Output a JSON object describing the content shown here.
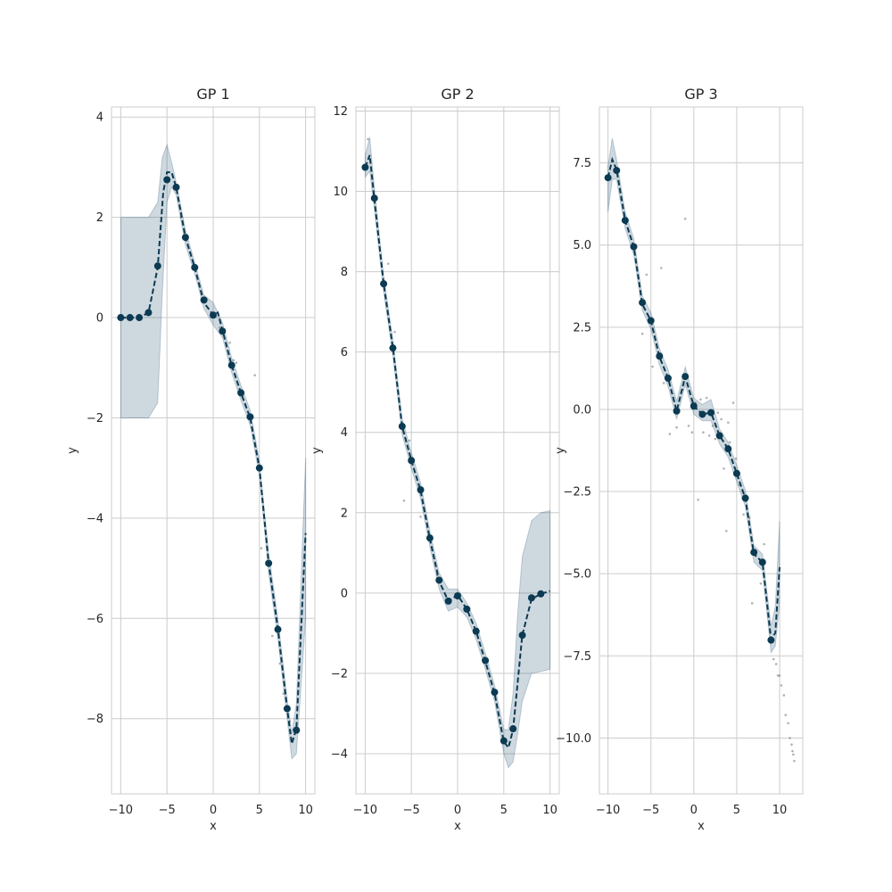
{
  "chart_data": [
    {
      "type": "line",
      "title": "GP 1",
      "xlabel": "x",
      "ylabel": "y",
      "xlim": [
        -11,
        11
      ],
      "ylim": [
        -9.5,
        4.2
      ],
      "xticks": [
        -10,
        -5,
        0,
        5,
        10
      ],
      "xticklabels": [
        "−10",
        "−5",
        "0",
        "5",
        "10"
      ],
      "yticks": [
        -8,
        -6,
        -4,
        -2,
        0,
        2,
        4
      ],
      "yticklabels": [
        "−8",
        "−6",
        "−4",
        "−2",
        "0",
        "2",
        "4"
      ],
      "grid": true,
      "mean": {
        "x": [
          -10,
          -9,
          -8,
          -7,
          -6,
          -5.4,
          -5,
          -4.5,
          -4,
          -3,
          -2,
          -1,
          0,
          0.5,
          1,
          2,
          3,
          4,
          5,
          6,
          7,
          8,
          8.5,
          9,
          10
        ],
        "y": [
          0,
          0,
          0,
          0.1,
          1.0,
          2.5,
          2.9,
          2.9,
          2.6,
          1.6,
          1.0,
          0.3,
          0.05,
          0.1,
          -0.25,
          -0.95,
          -1.5,
          -2.0,
          -3.0,
          -4.9,
          -6.2,
          -7.8,
          -8.5,
          -8.2,
          -4.3
        ]
      },
      "markers": {
        "x": [
          -10,
          -9,
          -8,
          -7,
          -6,
          -5,
          -4,
          -3,
          -2,
          -1,
          0,
          1,
          2,
          3,
          4,
          5,
          6,
          7,
          8,
          9
        ],
        "y": [
          0,
          0,
          0,
          0.1,
          1.03,
          2.75,
          2.6,
          1.6,
          1.0,
          0.35,
          0.05,
          -0.27,
          -0.95,
          -1.5,
          -1.98,
          -3.0,
          -4.9,
          -6.22,
          -7.8,
          -8.23
        ]
      },
      "band": {
        "x": [
          -10,
          -9,
          -8,
          -7,
          -6,
          -5.5,
          -5,
          -4.5,
          -4,
          -3,
          -2,
          -1,
          0,
          1,
          2,
          3,
          4,
          5,
          6,
          7,
          8,
          8.5,
          9,
          10
        ],
        "upper": [
          2.0,
          2.0,
          2.0,
          2.0,
          2.3,
          3.2,
          3.45,
          3.1,
          2.7,
          1.75,
          1.1,
          0.45,
          0.3,
          -0.1,
          -0.8,
          -1.35,
          -1.85,
          -2.85,
          -4.7,
          -6.0,
          -7.6,
          -8.3,
          -7.7,
          -2.8
        ],
        "lower": [
          -2.0,
          -2.0,
          -2.0,
          -2.0,
          -1.7,
          0.5,
          2.3,
          2.6,
          2.45,
          1.45,
          0.88,
          0.18,
          -0.15,
          -0.4,
          -1.1,
          -1.65,
          -2.15,
          -3.15,
          -5.1,
          -6.4,
          -8.0,
          -8.8,
          -8.7,
          -6.0
        ]
      },
      "scatter": {
        "x": [
          -3.5,
          -2.5,
          0.7,
          1.8,
          2.2,
          2.5,
          4.5,
          5.2,
          6.4,
          7.2,
          7.6,
          8.3
        ],
        "y": [
          2.0,
          1.3,
          -0.2,
          -0.5,
          -0.85,
          -0.9,
          -1.15,
          -4.6,
          -6.35,
          -6.9,
          -7.5,
          -8.05
        ]
      }
    },
    {
      "type": "line",
      "title": "GP 2",
      "xlabel": "x",
      "ylabel": "y",
      "xlim": [
        -11,
        11
      ],
      "ylim": [
        -5.0,
        12.1
      ],
      "xticks": [
        -10,
        -5,
        0,
        5,
        10
      ],
      "xticklabels": [
        "−10",
        "−5",
        "0",
        "5",
        "10"
      ],
      "yticks": [
        -4,
        -2,
        0,
        2,
        4,
        6,
        8,
        10,
        12
      ],
      "yticklabels": [
        "−4",
        "−2",
        "0",
        "2",
        "4",
        "6",
        "8",
        "10",
        "12"
      ],
      "grid": true,
      "mean": {
        "x": [
          -10,
          -9.5,
          -9,
          -8,
          -7,
          -6,
          -5,
          -4,
          -3,
          -2,
          -1,
          0,
          1,
          2,
          3,
          4,
          5,
          5.5,
          6,
          7,
          8,
          9,
          10
        ],
        "y": [
          10.6,
          10.9,
          9.8,
          7.7,
          6.1,
          4.15,
          3.3,
          2.55,
          1.35,
          0.3,
          -0.2,
          -0.05,
          -0.4,
          -0.95,
          -1.7,
          -2.5,
          -3.7,
          -3.85,
          -3.4,
          -1.05,
          -0.15,
          -0.02,
          0.05
        ]
      },
      "markers": {
        "x": [
          -10,
          -9,
          -8,
          -7,
          -6,
          -5,
          -4,
          -3,
          -2,
          -1,
          0,
          1,
          2,
          3,
          4,
          5,
          6,
          7,
          8,
          9
        ],
        "y": [
          10.6,
          9.83,
          7.7,
          6.1,
          4.15,
          3.3,
          2.57,
          1.37,
          0.32,
          -0.2,
          -0.07,
          -0.4,
          -0.95,
          -1.68,
          -2.47,
          -3.68,
          -3.38,
          -1.05,
          -0.12,
          -0.02
        ]
      },
      "band": {
        "x": [
          -10,
          -9.5,
          -9,
          -8,
          -7,
          -6,
          -5,
          -4,
          -3,
          -2,
          -1,
          0,
          1,
          2,
          3,
          4,
          5,
          5.5,
          6,
          6.5,
          7,
          8,
          9,
          10
        ],
        "upper": [
          10.9,
          11.35,
          10.1,
          7.9,
          6.3,
          4.35,
          3.5,
          2.75,
          1.55,
          0.5,
          0.1,
          0.1,
          -0.25,
          -0.75,
          -1.5,
          -2.3,
          -3.4,
          -3.4,
          -2.5,
          -0.5,
          0.9,
          1.8,
          2.0,
          2.05
        ],
        "lower": [
          10.35,
          10.5,
          9.55,
          7.5,
          5.9,
          3.95,
          3.1,
          2.35,
          1.15,
          0.1,
          -0.45,
          -0.35,
          -0.6,
          -1.15,
          -1.9,
          -2.7,
          -4.0,
          -4.35,
          -4.2,
          -3.5,
          -2.7,
          -2.0,
          -1.95,
          -1.9
        ]
      },
      "scatter": {
        "x": [
          -9.7,
          -7.5,
          -6.8,
          -5.8,
          -5.2,
          -4.0,
          -2.2
        ],
        "y": [
          11.3,
          8.2,
          6.5,
          2.3,
          3.8,
          1.9,
          0.45
        ]
      }
    },
    {
      "type": "line",
      "title": "GP 3",
      "xlabel": "x",
      "ylabel": "y",
      "xlim": [
        -11,
        12.7
      ],
      "ylim": [
        -11.7,
        9.2
      ],
      "xticks": [
        -10,
        -5,
        0,
        5,
        10
      ],
      "xticklabels": [
        "−10",
        "−5",
        "0",
        "5",
        "10"
      ],
      "yticks": [
        -10,
        -7.5,
        -5,
        -2.5,
        0,
        2.5,
        5,
        7.5
      ],
      "yticklabels": [
        "−10.0",
        "−7.5",
        "−5.0",
        "−2.5",
        "0.0",
        "2.5",
        "5.0",
        "7.5"
      ],
      "grid": true,
      "mean": {
        "x": [
          -10,
          -9.5,
          -9,
          -8,
          -7,
          -6,
          -5,
          -4,
          -3,
          -2,
          -1,
          0,
          1,
          2,
          3,
          4,
          5,
          6,
          7,
          8,
          9,
          9.5,
          10
        ],
        "y": [
          7.05,
          7.6,
          7.3,
          5.75,
          4.95,
          3.2,
          2.7,
          1.6,
          0.95,
          -0.05,
          1.0,
          0.1,
          -0.15,
          -0.1,
          -0.8,
          -1.2,
          -1.95,
          -2.7,
          -4.4,
          -4.65,
          -7.0,
          -6.8,
          -4.8
        ]
      },
      "markers": {
        "x": [
          -10,
          -9,
          -8,
          -7,
          -6,
          -5,
          -4,
          -3,
          -2,
          -1,
          0,
          1,
          2,
          3,
          4,
          5,
          6,
          7,
          8,
          9
        ],
        "y": [
          7.05,
          7.27,
          5.75,
          4.95,
          3.25,
          2.7,
          1.62,
          0.95,
          -0.05,
          1.0,
          0.1,
          -0.15,
          -0.1,
          -0.8,
          -1.2,
          -1.95,
          -2.7,
          -4.35,
          -4.65,
          -7.02
        ]
      },
      "band": {
        "x": [
          -10,
          -9.5,
          -9,
          -8,
          -7,
          -6,
          -5,
          -4,
          -3,
          -2,
          -1,
          0,
          1,
          2,
          3,
          4,
          5,
          6,
          7,
          8,
          9,
          9.5,
          10
        ],
        "upper": [
          7.4,
          8.25,
          7.6,
          6.0,
          5.2,
          3.45,
          2.95,
          1.85,
          1.2,
          0.25,
          1.3,
          0.35,
          0.15,
          0.3,
          -0.6,
          -1.0,
          -1.7,
          -2.45,
          -4.15,
          -4.4,
          -6.6,
          -6.0,
          -3.4
        ],
        "lower": [
          6.0,
          7.0,
          7.0,
          5.5,
          4.7,
          3.0,
          2.45,
          1.35,
          0.7,
          -0.3,
          0.75,
          -0.15,
          -0.35,
          -0.35,
          -1.05,
          -1.45,
          -2.2,
          -2.95,
          -4.65,
          -4.9,
          -7.4,
          -7.2,
          -5.9
        ]
      },
      "scatter": {
        "x": [
          -8.5,
          -7.2,
          -6.0,
          -5.5,
          -4.8,
          -3.8,
          -3.5,
          -2.8,
          -2.0,
          -1.3,
          -1.0,
          -0.6,
          -0.2,
          0.2,
          0.5,
          0.8,
          1.1,
          1.5,
          1.8,
          2.2,
          2.5,
          2.8,
          3.2,
          3.5,
          3.8,
          4.0,
          4.2,
          4.6,
          4.9,
          5.3,
          5.8,
          6.5,
          6.8,
          7.2,
          7.8,
          8.2,
          9.3,
          9.6,
          9.8,
          10.0,
          10.2,
          10.5,
          10.7,
          11.0,
          11.2,
          11.4,
          11.5,
          11.6,
          11.7
        ],
        "y": [
          6.4,
          5.0,
          2.3,
          4.1,
          1.3,
          4.3,
          0.8,
          -0.75,
          -0.55,
          0.6,
          5.8,
          -0.5,
          -0.7,
          0.2,
          -2.75,
          0.3,
          -0.7,
          0.35,
          -0.8,
          -0.5,
          -0.9,
          -0.1,
          -0.3,
          -1.8,
          -3.7,
          -0.4,
          -1.0,
          0.2,
          -1.5,
          -2.3,
          -3.2,
          -3.3,
          -5.9,
          -4.3,
          -5.3,
          -4.1,
          -7.6,
          -7.75,
          -8.1,
          -8.1,
          -8.4,
          -8.7,
          -9.3,
          -9.55,
          -10.0,
          -10.2,
          -10.4,
          -10.5,
          -10.7
        ]
      }
    }
  ]
}
